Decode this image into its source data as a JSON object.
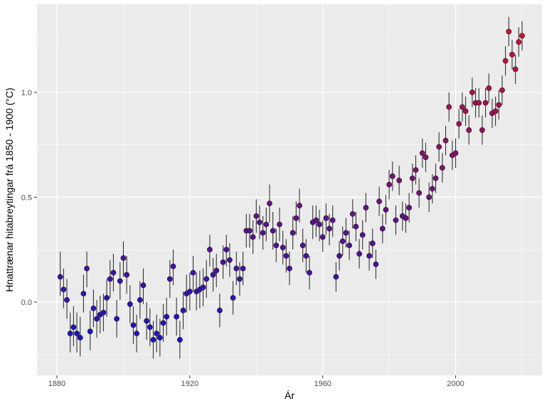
{
  "chart_data": {
    "type": "scatter",
    "title": "",
    "xlabel": "Ár",
    "ylabel": "Hnattrænar hitabreytingar frá 1850 - 1900 (°C)",
    "xlim": [
      1874,
      2026
    ],
    "ylim": [
      -0.35,
      1.42
    ],
    "x_ticks": [
      1880,
      1920,
      1960,
      2000
    ],
    "x_tick_labels": [
      "1880",
      "1920",
      "1960",
      "2000"
    ],
    "y_ticks": [
      0.0,
      0.5,
      1.0
    ],
    "y_tick_labels": [
      "0.0",
      "0.5",
      "1.0"
    ],
    "grid": true,
    "legend": "none",
    "panel_background": "#ebebeb",
    "grid_color": "#ffffff",
    "color_low": "#1a12c8",
    "color_high": "#d0102a",
    "error_bar_color": "#333333",
    "points": [
      {
        "x": 1881,
        "y": 0.12,
        "lo": 0.03,
        "hi": 0.24
      },
      {
        "x": 1882,
        "y": 0.06,
        "lo": -0.03,
        "hi": 0.16
      },
      {
        "x": 1883,
        "y": 0.01,
        "lo": -0.08,
        "hi": 0.11
      },
      {
        "x": 1884,
        "y": -0.15,
        "lo": -0.24,
        "hi": -0.05
      },
      {
        "x": 1885,
        "y": -0.12,
        "lo": -0.21,
        "hi": -0.02
      },
      {
        "x": 1886,
        "y": -0.15,
        "lo": -0.24,
        "hi": -0.05
      },
      {
        "x": 1887,
        "y": -0.17,
        "lo": -0.26,
        "hi": -0.07
      },
      {
        "x": 1888,
        "y": 0.04,
        "lo": -0.05,
        "hi": 0.13
      },
      {
        "x": 1889,
        "y": 0.16,
        "lo": 0.07,
        "hi": 0.24
      },
      {
        "x": 1890,
        "y": -0.14,
        "lo": -0.23,
        "hi": -0.04
      },
      {
        "x": 1891,
        "y": -0.03,
        "lo": -0.12,
        "hi": 0.06
      },
      {
        "x": 1892,
        "y": -0.08,
        "lo": -0.17,
        "hi": 0.01
      },
      {
        "x": 1893,
        "y": -0.06,
        "lo": -0.15,
        "hi": 0.03
      },
      {
        "x": 1894,
        "y": -0.05,
        "lo": -0.14,
        "hi": 0.04
      },
      {
        "x": 1895,
        "y": 0.02,
        "lo": -0.07,
        "hi": 0.11
      },
      {
        "x": 1896,
        "y": 0.11,
        "lo": 0.02,
        "hi": 0.2
      },
      {
        "x": 1897,
        "y": 0.14,
        "lo": 0.05,
        "hi": 0.23
      },
      {
        "x": 1898,
        "y": -0.08,
        "lo": -0.17,
        "hi": 0.01
      },
      {
        "x": 1899,
        "y": 0.1,
        "lo": 0.01,
        "hi": 0.19
      },
      {
        "x": 1900,
        "y": 0.21,
        "lo": 0.12,
        "hi": 0.29
      },
      {
        "x": 1901,
        "y": 0.13,
        "lo": 0.04,
        "hi": 0.22
      },
      {
        "x": 1902,
        "y": -0.01,
        "lo": -0.1,
        "hi": 0.08
      },
      {
        "x": 1903,
        "y": -0.11,
        "lo": -0.2,
        "hi": -0.02
      },
      {
        "x": 1904,
        "y": -0.15,
        "lo": -0.24,
        "hi": -0.06
      },
      {
        "x": 1905,
        "y": 0.01,
        "lo": -0.08,
        "hi": 0.1
      },
      {
        "x": 1906,
        "y": 0.08,
        "lo": -0.01,
        "hi": 0.16
      },
      {
        "x": 1907,
        "y": -0.09,
        "lo": -0.18,
        "hi": 0.0
      },
      {
        "x": 1908,
        "y": -0.12,
        "lo": -0.21,
        "hi": -0.03
      },
      {
        "x": 1909,
        "y": -0.18,
        "lo": -0.27,
        "hi": -0.09
      },
      {
        "x": 1910,
        "y": -0.15,
        "lo": -0.24,
        "hi": -0.06
      },
      {
        "x": 1911,
        "y": -0.17,
        "lo": -0.26,
        "hi": -0.08
      },
      {
        "x": 1912,
        "y": -0.1,
        "lo": -0.19,
        "hi": -0.01
      },
      {
        "x": 1913,
        "y": -0.07,
        "lo": -0.16,
        "hi": 0.02
      },
      {
        "x": 1914,
        "y": 0.11,
        "lo": 0.02,
        "hi": 0.2
      },
      {
        "x": 1915,
        "y": 0.17,
        "lo": 0.08,
        "hi": 0.25
      },
      {
        "x": 1916,
        "y": -0.07,
        "lo": -0.16,
        "hi": 0.02
      },
      {
        "x": 1917,
        "y": -0.18,
        "lo": -0.27,
        "hi": -0.09
      },
      {
        "x": 1918,
        "y": -0.04,
        "lo": -0.13,
        "hi": 0.05
      },
      {
        "x": 1919,
        "y": 0.04,
        "lo": -0.05,
        "hi": 0.13
      },
      {
        "x": 1920,
        "y": 0.05,
        "lo": -0.04,
        "hi": 0.14
      },
      {
        "x": 1921,
        "y": 0.14,
        "lo": 0.05,
        "hi": 0.22
      },
      {
        "x": 1922,
        "y": 0.05,
        "lo": -0.04,
        "hi": 0.14
      },
      {
        "x": 1923,
        "y": 0.06,
        "lo": -0.03,
        "hi": 0.15
      },
      {
        "x": 1924,
        "y": 0.07,
        "lo": -0.02,
        "hi": 0.16
      },
      {
        "x": 1925,
        "y": 0.11,
        "lo": 0.02,
        "hi": 0.2
      },
      {
        "x": 1926,
        "y": 0.25,
        "lo": 0.17,
        "hi": 0.32
      },
      {
        "x": 1927,
        "y": 0.13,
        "lo": 0.05,
        "hi": 0.21
      },
      {
        "x": 1928,
        "y": 0.15,
        "lo": 0.07,
        "hi": 0.23
      },
      {
        "x": 1929,
        "y": -0.04,
        "lo": -0.12,
        "hi": 0.04
      },
      {
        "x": 1930,
        "y": 0.19,
        "lo": 0.11,
        "hi": 0.27
      },
      {
        "x": 1931,
        "y": 0.25,
        "lo": 0.17,
        "hi": 0.32
      },
      {
        "x": 1932,
        "y": 0.2,
        "lo": 0.12,
        "hi": 0.28
      },
      {
        "x": 1933,
        "y": 0.02,
        "lo": -0.06,
        "hi": 0.1
      },
      {
        "x": 1934,
        "y": 0.16,
        "lo": 0.08,
        "hi": 0.24
      },
      {
        "x": 1935,
        "y": 0.11,
        "lo": 0.03,
        "hi": 0.19
      },
      {
        "x": 1936,
        "y": 0.16,
        "lo": 0.08,
        "hi": 0.24
      },
      {
        "x": 1937,
        "y": 0.34,
        "lo": 0.26,
        "hi": 0.42
      },
      {
        "x": 1938,
        "y": 0.34,
        "lo": 0.26,
        "hi": 0.42
      },
      {
        "x": 1939,
        "y": 0.31,
        "lo": 0.23,
        "hi": 0.39
      },
      {
        "x": 1940,
        "y": 0.41,
        "lo": 0.33,
        "hi": 0.49
      },
      {
        "x": 1941,
        "y": 0.38,
        "lo": 0.3,
        "hi": 0.46
      },
      {
        "x": 1942,
        "y": 0.33,
        "lo": 0.25,
        "hi": 0.41
      },
      {
        "x": 1943,
        "y": 0.37,
        "lo": 0.29,
        "hi": 0.45
      },
      {
        "x": 1944,
        "y": 0.47,
        "lo": 0.38,
        "hi": 0.56
      },
      {
        "x": 1945,
        "y": 0.34,
        "lo": 0.25,
        "hi": 0.43
      },
      {
        "x": 1946,
        "y": 0.27,
        "lo": 0.19,
        "hi": 0.35
      },
      {
        "x": 1947,
        "y": 0.37,
        "lo": 0.29,
        "hi": 0.45
      },
      {
        "x": 1948,
        "y": 0.26,
        "lo": 0.18,
        "hi": 0.34
      },
      {
        "x": 1949,
        "y": 0.22,
        "lo": 0.14,
        "hi": 0.3
      },
      {
        "x": 1950,
        "y": 0.16,
        "lo": 0.08,
        "hi": 0.24
      },
      {
        "x": 1951,
        "y": 0.33,
        "lo": 0.25,
        "hi": 0.41
      },
      {
        "x": 1952,
        "y": 0.4,
        "lo": 0.32,
        "hi": 0.48
      },
      {
        "x": 1953,
        "y": 0.46,
        "lo": 0.38,
        "hi": 0.54
      },
      {
        "x": 1954,
        "y": 0.27,
        "lo": 0.19,
        "hi": 0.35
      },
      {
        "x": 1955,
        "y": 0.22,
        "lo": 0.14,
        "hi": 0.3
      },
      {
        "x": 1956,
        "y": 0.14,
        "lo": 0.06,
        "hi": 0.22
      },
      {
        "x": 1957,
        "y": 0.38,
        "lo": 0.3,
        "hi": 0.46
      },
      {
        "x": 1958,
        "y": 0.39,
        "lo": 0.31,
        "hi": 0.46
      },
      {
        "x": 1959,
        "y": 0.37,
        "lo": 0.29,
        "hi": 0.44
      },
      {
        "x": 1960,
        "y": 0.31,
        "lo": 0.24,
        "hi": 0.39
      },
      {
        "x": 1961,
        "y": 0.4,
        "lo": 0.32,
        "hi": 0.47
      },
      {
        "x": 1962,
        "y": 0.35,
        "lo": 0.27,
        "hi": 0.42
      },
      {
        "x": 1963,
        "y": 0.39,
        "lo": 0.31,
        "hi": 0.46
      },
      {
        "x": 1964,
        "y": 0.12,
        "lo": 0.05,
        "hi": 0.19
      },
      {
        "x": 1965,
        "y": 0.22,
        "lo": 0.15,
        "hi": 0.29
      },
      {
        "x": 1966,
        "y": 0.29,
        "lo": 0.22,
        "hi": 0.36
      },
      {
        "x": 1967,
        "y": 0.33,
        "lo": 0.26,
        "hi": 0.4
      },
      {
        "x": 1968,
        "y": 0.27,
        "lo": 0.2,
        "hi": 0.34
      },
      {
        "x": 1969,
        "y": 0.42,
        "lo": 0.35,
        "hi": 0.49
      },
      {
        "x": 1970,
        "y": 0.36,
        "lo": 0.29,
        "hi": 0.43
      },
      {
        "x": 1971,
        "y": 0.23,
        "lo": 0.16,
        "hi": 0.3
      },
      {
        "x": 1972,
        "y": 0.32,
        "lo": 0.25,
        "hi": 0.39
      },
      {
        "x": 1973,
        "y": 0.45,
        "lo": 0.38,
        "hi": 0.52
      },
      {
        "x": 1974,
        "y": 0.22,
        "lo": 0.15,
        "hi": 0.29
      },
      {
        "x": 1975,
        "y": 0.28,
        "lo": 0.21,
        "hi": 0.35
      },
      {
        "x": 1976,
        "y": 0.18,
        "lo": 0.11,
        "hi": 0.25
      },
      {
        "x": 1977,
        "y": 0.48,
        "lo": 0.41,
        "hi": 0.55
      },
      {
        "x": 1978,
        "y": 0.35,
        "lo": 0.28,
        "hi": 0.42
      },
      {
        "x": 1979,
        "y": 0.44,
        "lo": 0.37,
        "hi": 0.51
      },
      {
        "x": 1980,
        "y": 0.56,
        "lo": 0.49,
        "hi": 0.63
      },
      {
        "x": 1981,
        "y": 0.6,
        "lo": 0.53,
        "hi": 0.67
      },
      {
        "x": 1982,
        "y": 0.39,
        "lo": 0.32,
        "hi": 0.46
      },
      {
        "x": 1983,
        "y": 0.58,
        "lo": 0.51,
        "hi": 0.65
      },
      {
        "x": 1984,
        "y": 0.41,
        "lo": 0.34,
        "hi": 0.48
      },
      {
        "x": 1985,
        "y": 0.4,
        "lo": 0.33,
        "hi": 0.47
      },
      {
        "x": 1986,
        "y": 0.45,
        "lo": 0.38,
        "hi": 0.52
      },
      {
        "x": 1987,
        "y": 0.59,
        "lo": 0.52,
        "hi": 0.66
      },
      {
        "x": 1988,
        "y": 0.63,
        "lo": 0.56,
        "hi": 0.7
      },
      {
        "x": 1989,
        "y": 0.52,
        "lo": 0.45,
        "hi": 0.59
      },
      {
        "x": 1990,
        "y": 0.71,
        "lo": 0.64,
        "hi": 0.78
      },
      {
        "x": 1991,
        "y": 0.69,
        "lo": 0.62,
        "hi": 0.76
      },
      {
        "x": 1992,
        "y": 0.5,
        "lo": 0.43,
        "hi": 0.57
      },
      {
        "x": 1993,
        "y": 0.54,
        "lo": 0.47,
        "hi": 0.61
      },
      {
        "x": 1994,
        "y": 0.59,
        "lo": 0.52,
        "hi": 0.66
      },
      {
        "x": 1995,
        "y": 0.74,
        "lo": 0.67,
        "hi": 0.81
      },
      {
        "x": 1996,
        "y": 0.64,
        "lo": 0.57,
        "hi": 0.71
      },
      {
        "x": 1997,
        "y": 0.77,
        "lo": 0.7,
        "hi": 0.84
      },
      {
        "x": 1998,
        "y": 0.93,
        "lo": 0.86,
        "hi": 1.0
      },
      {
        "x": 1999,
        "y": 0.7,
        "lo": 0.63,
        "hi": 0.77
      },
      {
        "x": 2000,
        "y": 0.71,
        "lo": 0.64,
        "hi": 0.78
      },
      {
        "x": 2001,
        "y": 0.85,
        "lo": 0.78,
        "hi": 0.92
      },
      {
        "x": 2002,
        "y": 0.93,
        "lo": 0.86,
        "hi": 1.0
      },
      {
        "x": 2003,
        "y": 0.91,
        "lo": 0.84,
        "hi": 0.98
      },
      {
        "x": 2004,
        "y": 0.82,
        "lo": 0.75,
        "hi": 0.89
      },
      {
        "x": 2005,
        "y": 1.0,
        "lo": 0.93,
        "hi": 1.07
      },
      {
        "x": 2006,
        "y": 0.95,
        "lo": 0.88,
        "hi": 1.02
      },
      {
        "x": 2007,
        "y": 0.95,
        "lo": 0.88,
        "hi": 1.02
      },
      {
        "x": 2008,
        "y": 0.82,
        "lo": 0.75,
        "hi": 0.89
      },
      {
        "x": 2009,
        "y": 0.95,
        "lo": 0.88,
        "hi": 1.02
      },
      {
        "x": 2010,
        "y": 1.02,
        "lo": 0.95,
        "hi": 1.09
      },
      {
        "x": 2011,
        "y": 0.9,
        "lo": 0.83,
        "hi": 0.97
      },
      {
        "x": 2012,
        "y": 0.91,
        "lo": 0.84,
        "hi": 0.98
      },
      {
        "x": 2013,
        "y": 0.94,
        "lo": 0.87,
        "hi": 1.01
      },
      {
        "x": 2014,
        "y": 1.01,
        "lo": 0.94,
        "hi": 1.08
      },
      {
        "x": 2015,
        "y": 1.15,
        "lo": 1.08,
        "hi": 1.22
      },
      {
        "x": 2016,
        "y": 1.29,
        "lo": 1.22,
        "hi": 1.36
      },
      {
        "x": 2017,
        "y": 1.18,
        "lo": 1.11,
        "hi": 1.25
      },
      {
        "x": 2018,
        "y": 1.11,
        "lo": 1.04,
        "hi": 1.18
      },
      {
        "x": 2019,
        "y": 1.24,
        "lo": 1.17,
        "hi": 1.31
      },
      {
        "x": 2020,
        "y": 1.27,
        "lo": 1.2,
        "hi": 1.34
      }
    ]
  }
}
